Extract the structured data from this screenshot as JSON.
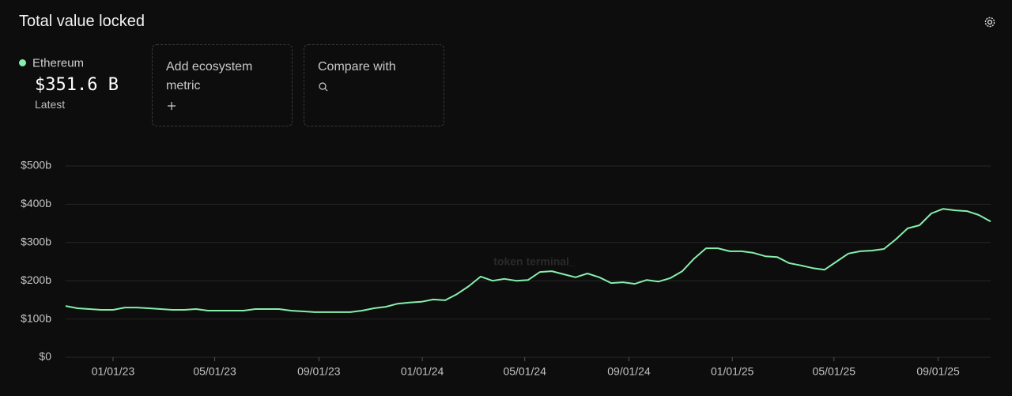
{
  "chart_data": {
    "type": "line",
    "title": "Total value locked",
    "x": [
      "2022-11-06",
      "2022-11-20",
      "2022-12-04",
      "2022-12-18",
      "2023-01-01",
      "2023-01-15",
      "2023-01-29",
      "2023-02-12",
      "2023-02-26",
      "2023-03-12",
      "2023-03-26",
      "2023-04-09",
      "2023-04-23",
      "2023-05-07",
      "2023-05-21",
      "2023-06-04",
      "2023-06-18",
      "2023-07-02",
      "2023-07-16",
      "2023-07-30",
      "2023-08-13",
      "2023-08-27",
      "2023-09-10",
      "2023-09-24",
      "2023-10-08",
      "2023-10-22",
      "2023-11-05",
      "2023-11-19",
      "2023-12-03",
      "2023-12-17",
      "2023-12-31",
      "2024-01-14",
      "2024-01-28",
      "2024-02-11",
      "2024-02-25",
      "2024-03-10",
      "2024-03-24",
      "2024-04-07",
      "2024-04-21",
      "2024-05-05",
      "2024-05-19",
      "2024-06-02",
      "2024-06-16",
      "2024-06-30",
      "2024-07-14",
      "2024-07-28",
      "2024-08-11",
      "2024-08-25",
      "2024-09-08",
      "2024-09-22",
      "2024-10-06",
      "2024-10-20",
      "2024-11-03",
      "2024-11-17",
      "2024-12-01",
      "2024-12-15",
      "2024-12-29",
      "2025-01-12",
      "2025-01-26",
      "2025-02-09",
      "2025-02-23",
      "2025-03-09",
      "2025-03-23",
      "2025-04-06",
      "2025-04-20",
      "2025-05-04",
      "2025-05-18",
      "2025-06-01",
      "2025-06-15",
      "2025-06-29",
      "2025-07-13",
      "2025-07-27",
      "2025-08-10",
      "2025-08-24",
      "2025-09-07",
      "2025-09-21",
      "2025-10-05",
      "2025-10-19",
      "2025-11-02"
    ],
    "series": [
      {
        "name": "Ethereum",
        "color": "#86efac",
        "values": [
          134,
          128,
          126,
          124,
          124,
          130,
          130,
          128,
          126,
          124,
          124,
          126,
          122,
          122,
          122,
          122,
          126,
          126,
          126,
          122,
          120,
          118,
          118,
          118,
          118,
          122,
          128,
          132,
          140,
          143,
          145,
          151,
          149,
          165,
          186,
          211,
          200,
          205,
          200,
          202,
          223,
          225,
          217,
          209,
          219,
          209,
          194,
          196,
          192,
          202,
          198,
          207,
          225,
          258,
          285,
          285,
          277,
          277,
          273,
          264,
          262,
          246,
          240,
          233,
          229,
          250,
          271,
          277,
          279,
          283,
          308,
          337,
          345,
          376,
          388,
          384,
          382,
          372,
          355
        ]
      }
    ],
    "xlim": [
      "2022-11-06",
      "2025-11-02"
    ],
    "xticks": [
      {
        "value": "2023-01-01",
        "label": "01/01/23"
      },
      {
        "value": "2023-05-01",
        "label": "05/01/23"
      },
      {
        "value": "2023-09-01",
        "label": "09/01/23"
      },
      {
        "value": "2024-01-01",
        "label": "01/01/24"
      },
      {
        "value": "2024-05-01",
        "label": "05/01/24"
      },
      {
        "value": "2024-09-01",
        "label": "09/01/24"
      },
      {
        "value": "2025-01-01",
        "label": "01/01/25"
      },
      {
        "value": "2025-05-01",
        "label": "05/01/25"
      },
      {
        "value": "2025-09-01",
        "label": "09/01/25"
      }
    ],
    "ylim": [
      0,
      500
    ],
    "yticks": [
      {
        "value": 0,
        "label": "$0"
      },
      {
        "value": 100,
        "label": "$100b"
      },
      {
        "value": 200,
        "label": "$200b"
      },
      {
        "value": 300,
        "label": "$300b"
      },
      {
        "value": 400,
        "label": "$400b"
      },
      {
        "value": 500,
        "label": "$500b"
      }
    ],
    "grid": true
  },
  "summary": {
    "value": "$351.6 B",
    "caption": "Latest"
  },
  "controls": {
    "add_metric": "Add ecosystem metric",
    "compare": "Compare with"
  },
  "watermark": "token terminal_"
}
